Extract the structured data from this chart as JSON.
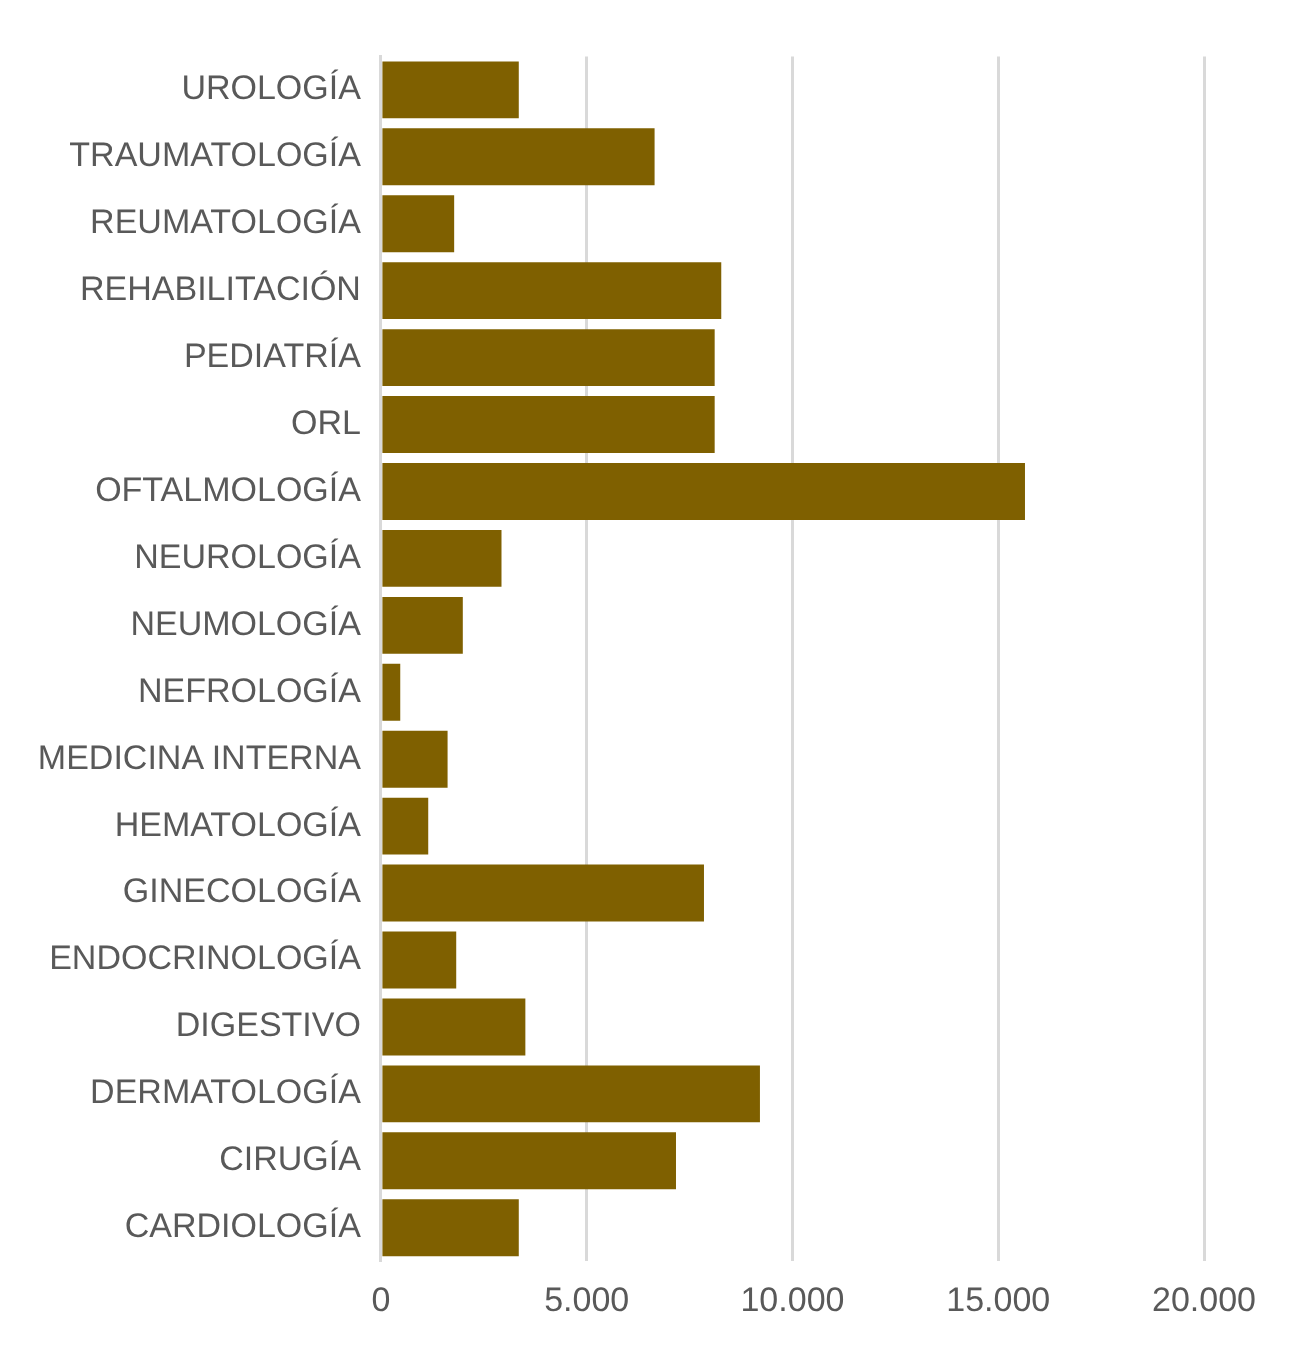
{
  "chart_data": {
    "type": "bar",
    "orientation": "horizontal",
    "categories": [
      "UROLOGÍA",
      "TRAUMATOLOGÍA",
      "REUMATOLOGÍA",
      "REHABILITACIÓN",
      "PEDIATRÍA",
      "ORL",
      "OFTALMOLOGÍA",
      "NEUROLOGÍA",
      "NEUMOLOGÍA",
      "NEFROLOGÍA",
      "MEDICINA INTERNA",
      "HEMATOLOGÍA",
      "GINECOLOGÍA",
      "ENDOCRINOLOGÍA",
      "DIGESTIVO",
      "DERMATOLOGÍA",
      "CIRUGÍA",
      "CARDIOLOGÍA"
    ],
    "values": [
      3350,
      6650,
      1780,
      8270,
      8110,
      8110,
      15650,
      2930,
      1990,
      470,
      1620,
      1150,
      7850,
      1830,
      3510,
      9210,
      7170,
      3350
    ],
    "color": "#7f6000",
    "xlim": [
      0,
      20000
    ],
    "xticks": [
      0,
      {
        "value": 5000,
        "label": "5.000"
      },
      {
        "value": 10000,
        "label": "10.000"
      },
      {
        "value": 15000,
        "label": "15.000"
      },
      {
        "value": 20000,
        "label": "20.000"
      }
    ],
    "grid": "x",
    "legend": false
  }
}
